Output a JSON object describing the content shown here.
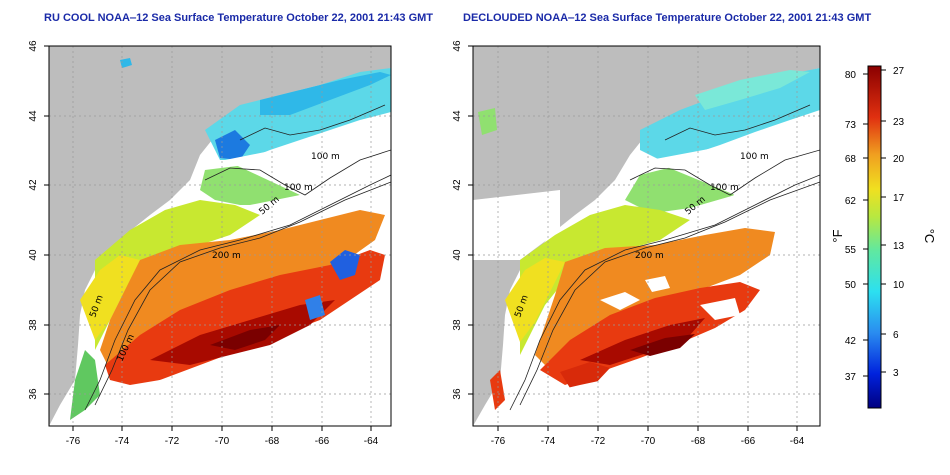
{
  "panels": [
    {
      "id": "left",
      "title": "RU COOL NOAA‒12 Sea Surface Temperature October 22, 2001 21:43 GMT"
    },
    {
      "id": "right",
      "title": "DECLOUDED NOAA‒12 Sea Surface Temperature October 22, 2001 21:43 GMT"
    }
  ],
  "axes": {
    "x_ticks": [
      "-76",
      "-74",
      "-72",
      "-70",
      "-68",
      "-66",
      "-64"
    ],
    "y_ticks": [
      "46",
      "44",
      "42",
      "40",
      "38",
      "36"
    ],
    "x_range": [
      -77,
      -63
    ],
    "y_range": [
      35,
      46
    ]
  },
  "contours": {
    "c50": "50 m",
    "c100": "100 m",
    "c200": "200 m"
  },
  "colorbar": {
    "f_label": "°F",
    "c_label": "°C",
    "f_ticks": [
      "80",
      "73",
      "68",
      "62",
      "55",
      "50",
      "42",
      "37"
    ],
    "c_ticks": [
      "27",
      "23",
      "20",
      "17",
      "13",
      "10",
      "6",
      "3"
    ]
  },
  "colors": {
    "land": "#bdbdbd",
    "title": "#1a2aa8"
  }
}
